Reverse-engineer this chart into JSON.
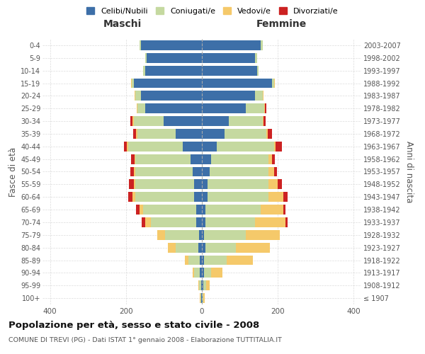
{
  "age_groups": [
    "100+",
    "95-99",
    "90-94",
    "85-89",
    "80-84",
    "75-79",
    "70-74",
    "65-69",
    "60-64",
    "55-59",
    "50-54",
    "45-49",
    "40-44",
    "35-39",
    "30-34",
    "25-29",
    "20-24",
    "15-19",
    "10-14",
    "5-9",
    "0-4"
  ],
  "birth_years": [
    "≤ 1907",
    "1908-1912",
    "1913-1917",
    "1918-1922",
    "1923-1927",
    "1928-1932",
    "1933-1937",
    "1938-1942",
    "1943-1947",
    "1948-1952",
    "1953-1957",
    "1958-1962",
    "1963-1967",
    "1968-1972",
    "1973-1977",
    "1978-1982",
    "1983-1987",
    "1988-1992",
    "1993-1997",
    "1998-2002",
    "2003-2007"
  ],
  "males": {
    "celibi": [
      2,
      2,
      5,
      5,
      10,
      8,
      15,
      15,
      20,
      20,
      25,
      30,
      50,
      70,
      100,
      150,
      160,
      180,
      150,
      145,
      160
    ],
    "coniugati": [
      2,
      5,
      15,
      30,
      60,
      90,
      120,
      140,
      155,
      155,
      150,
      145,
      145,
      100,
      80,
      20,
      15,
      5,
      5,
      5,
      5
    ],
    "vedovi": [
      1,
      2,
      5,
      10,
      20,
      20,
      15,
      10,
      8,
      5,
      5,
      3,
      3,
      3,
      3,
      2,
      3,
      2,
      0,
      0,
      0
    ],
    "divorziati": [
      0,
      0,
      0,
      0,
      0,
      0,
      8,
      8,
      12,
      12,
      8,
      8,
      8,
      8,
      5,
      0,
      0,
      0,
      0,
      0,
      0
    ]
  },
  "females": {
    "nubili": [
      2,
      3,
      5,
      5,
      10,
      5,
      10,
      10,
      15,
      15,
      20,
      25,
      40,
      60,
      70,
      115,
      140,
      185,
      145,
      140,
      155
    ],
    "coniugate": [
      2,
      8,
      20,
      60,
      80,
      110,
      130,
      145,
      160,
      160,
      155,
      150,
      150,
      110,
      90,
      50,
      20,
      5,
      5,
      5,
      5
    ],
    "vedove": [
      3,
      10,
      30,
      70,
      90,
      90,
      80,
      60,
      40,
      25,
      15,
      10,
      5,
      3,
      3,
      2,
      2,
      2,
      0,
      0,
      0
    ],
    "divorziate": [
      0,
      0,
      0,
      0,
      0,
      0,
      5,
      5,
      10,
      10,
      8,
      8,
      15,
      12,
      5,
      2,
      0,
      0,
      0,
      0,
      0
    ]
  },
  "colors": {
    "celibi_nubili": "#3d6fa8",
    "coniugati": "#c5d9a0",
    "vedovi": "#f5c96a",
    "divorziati": "#cc2222"
  },
  "xlim": 420,
  "title": "Popolazione per età, sesso e stato civile - 2008",
  "subtitle": "COMUNE DI TREVI (PG) - Dati ISTAT 1° gennaio 2008 - Elaborazione TUTTITALIA.IT",
  "ylabel_left": "Fasce di età",
  "ylabel_right": "Anni di nascita",
  "xlabel_left": "Maschi",
  "xlabel_right": "Femmine",
  "legend_labels": [
    "Celibi/Nubili",
    "Coniugati/e",
    "Vedovi/e",
    "Divorziati/e"
  ],
  "background_color": "#ffffff",
  "grid_color": "#cccccc"
}
